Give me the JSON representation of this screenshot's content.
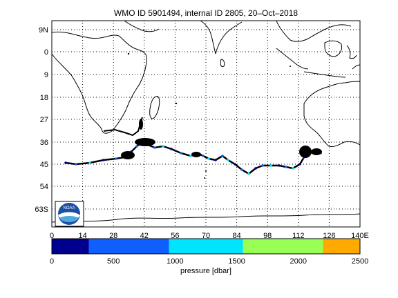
{
  "title": "WMO ID 5901494, internal ID 2805, 20–Oct–2018",
  "map": {
    "lon_ticks": [
      "0",
      "14",
      "28",
      "42",
      "56",
      "70",
      "84",
      "98",
      "112",
      "126",
      "140E"
    ],
    "lat_ticks": [
      "9N",
      "0",
      "9",
      "18",
      "27",
      "36",
      "45",
      "54",
      "63S"
    ],
    "lon_range": [
      0,
      140
    ],
    "lat_range": [
      12,
      -68
    ],
    "grid": "dotted",
    "logo": "NOAA"
  },
  "colorbar": {
    "label": "pressure [dbar]",
    "ticks": [
      "0",
      "500",
      "1000",
      "1500",
      "2000",
      "2500"
    ],
    "segments": [
      {
        "from": 0,
        "to": 300,
        "color": "#00008f"
      },
      {
        "from": 300,
        "to": 950,
        "color": "#0f5fff"
      },
      {
        "from": 950,
        "to": 1550,
        "color": "#00e5ff"
      },
      {
        "from": 1550,
        "to": 2200,
        "color": "#99ff55"
      },
      {
        "from": 2200,
        "to": 2500,
        "color": "#ffaa00"
      }
    ]
  },
  "colors": {
    "track": "#000000",
    "coast": "#000000",
    "pressure_shallow": "#00008f",
    "pressure_mid": "#0f5fff",
    "pressure_deep": "#00e5ff"
  }
}
